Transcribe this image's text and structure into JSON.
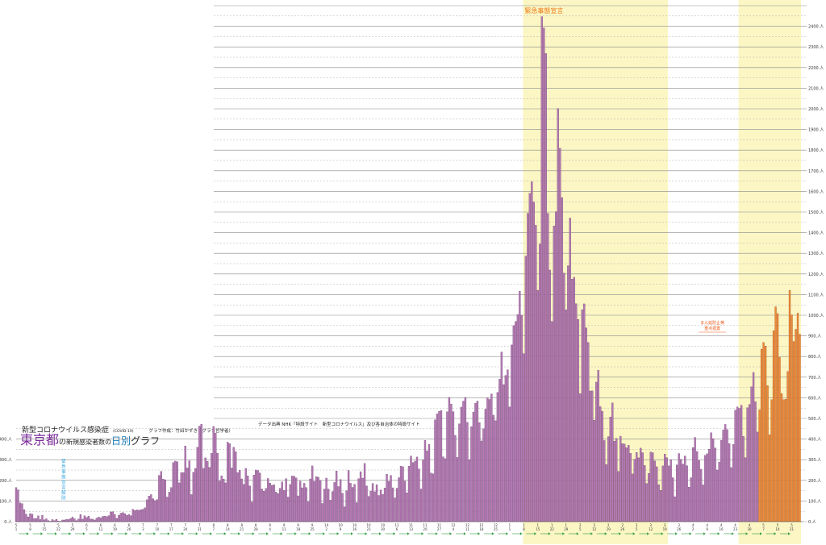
{
  "header": {
    "disease": "新型コロナウイルス感染症",
    "disease_en": "(COVID-19)",
    "author": "グラフ作成：竹田かずき（グラフ哲学者）",
    "pref": "東京都",
    "no": "の",
    "middle": "新規感染者数の",
    "daily": "日別",
    "graph": "グラフ",
    "source": "データ出典 NHK「特設サイト　新型コロナウイルス」及び各自治体の特設サイト"
  },
  "chart_data": {
    "type": "bar",
    "title": "東京都の新規感染者数の日別グラフ",
    "ylabel": "",
    "xlabel": "",
    "unit": "人",
    "ylim": [
      0,
      2500
    ],
    "y_ticks": [
      0,
      100,
      200,
      300,
      400,
      500,
      600,
      700,
      800,
      900,
      1000,
      1100,
      1200,
      1300,
      1400,
      1500,
      1600,
      1700,
      1800,
      1900,
      2000,
      2100,
      2200,
      2300,
      2400
    ],
    "grid": true,
    "colors": {
      "normal": "#b57ab5",
      "recent": "#ee8a3a",
      "emergency_band": "#fbf6c4",
      "arrow": "#2a9a3a",
      "annotation": "#ee5a1a"
    },
    "start_date": "2020-05-01",
    "series": [
      {
        "values": [
          165,
          154,
          91,
          87,
          58,
          36,
          23,
          39,
          36,
          15,
          15,
          28,
          10,
          30,
          9,
          14,
          5,
          2,
          10,
          5,
          11,
          3,
          2,
          8,
          8,
          11,
          10,
          15,
          22,
          14,
          5,
          13,
          34,
          12,
          28,
          20,
          26,
          13,
          12,
          8,
          17,
          22,
          18,
          25,
          27,
          24,
          29,
          47,
          48,
          35,
          16,
          31,
          41,
          44,
          39,
          31,
          35,
          29,
          60,
          54,
          57,
          55,
          58,
          60,
          67,
          106,
          124,
          131,
          111,
          102,
          107,
          224,
          243,
          206,
          203,
          119,
          143,
          165,
          286,
          293,
          290,
          188,
          237,
          238,
          366,
          260,
          295,
          131,
          239,
          258,
          360,
          463,
          472,
          258,
          309,
          292,
          263,
          331,
          461,
          429,
          332,
          197,
          222,
          206,
          188,
          385,
          378,
          260,
          360,
          339,
          237,
          249,
          207,
          181,
          258,
          222,
          173,
          95,
          226,
          250,
          248,
          236,
          158,
          148,
          161,
          209,
          187,
          176,
          179,
          144,
          136,
          161,
          192,
          151,
          208,
          119,
          181,
          221,
          220,
          212,
          125,
          196,
          164,
          186,
          165,
          96,
          207,
          270,
          195,
          218,
          215,
          198,
          88,
          158,
          211,
          158,
          104,
          146,
          190,
          245,
          170,
          204,
          138,
          72,
          150,
          248,
          186,
          166,
          181,
          92,
          208,
          242,
          211,
          282,
          173,
          122,
          148,
          185,
          145,
          179,
          127,
          153,
          132,
          163,
          230,
          195,
          224,
          164,
          115,
          162,
          213,
          269,
          266,
          196,
          140,
          269,
          318,
          286,
          293,
          313,
          255,
          158,
          298,
          394,
          343,
          374,
          235,
          232,
          493,
          522,
          534,
          539,
          314,
          305,
          532,
          602,
          570,
          533,
          418,
          311,
          474,
          555,
          584,
          602,
          481,
          300,
          460,
          531,
          574,
          584,
          480,
          391,
          450,
          545,
          600,
          592,
          619,
          516,
          489,
          626,
          690,
          822,
          664,
          708,
          736,
          556,
          856,
          950,
          970,
          1003,
          1116,
          1000,
          814,
          1287,
          1494,
          1591,
          1647,
          1548,
          1436,
          1121,
          1345,
          2447,
          2392,
          2268,
          1494,
          1219,
          970,
          1433,
          1502,
          2001,
          1809,
          1570,
          1204,
          1026,
          1240,
          1471,
          1175,
          1184,
          1056,
          980,
          620,
          1027,
          1055,
          939,
          868,
          633,
          634,
          491,
          676,
          734,
          557,
          535,
          393,
          276,
          412,
          507,
          575,
          390,
          403,
          243,
          414,
          378,
          376,
          358,
          370,
          331,
          231,
          302,
          335,
          309,
          356,
          334,
          272,
          185,
          234,
          337,
          334,
          294,
          266,
          179,
          152,
          270,
          327,
          310,
          270,
          300,
          213,
          121,
          275,
          330,
          302,
          279,
          318,
          271,
          167,
          213,
          359,
          408,
          340,
          296,
          254,
          178,
          321,
          329,
          351,
          431,
          402,
          357,
          250,
          289,
          394,
          444,
          471,
          446,
          378,
          262,
          374,
          540,
          556,
          549,
          564,
          413,
          310,
          552,
          568,
          653,
          723,
          581,
          434,
          542,
          836,
          868,
          851,
          659,
          421,
          591,
          925,
          1041,
          1008,
          796,
          621,
          591,
          593,
          728,
          1121,
          1002,
          873,
          932,
          1010,
          908
        ]
      }
    ],
    "annotations": {
      "emergency_top": "緊急事態宣言",
      "emergency_lift": "緊急事態宣言解除",
      "prevention_line1": "まん延防止等",
      "prevention_line2": "重点措置"
    }
  }
}
